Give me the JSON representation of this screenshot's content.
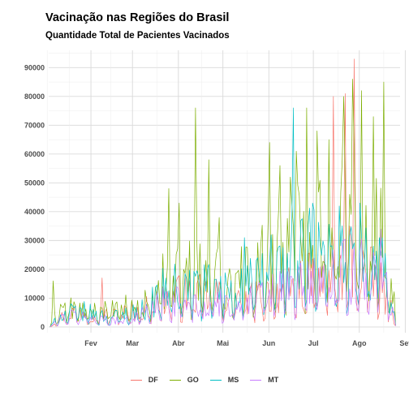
{
  "title": "Vacinação nas Regiões do Brasil",
  "subtitle": "Quantidade Total de Pacientes Vacinados",
  "chart_data": {
    "type": "line",
    "title": "Vacinação nas Regiões do Brasil",
    "subtitle": "Quantidade Total de Pacientes Vacinados",
    "xlabel": "",
    "ylabel": "",
    "x_ticks": [
      "Fev",
      "Mar",
      "Abr",
      "Mai",
      "Jun",
      "Jul",
      "Ago",
      "Set"
    ],
    "y_ticks": [
      0,
      10000,
      20000,
      30000,
      40000,
      50000,
      60000,
      70000,
      80000,
      90000
    ],
    "xlim": [
      "2021-01-18",
      "2021-09-12"
    ],
    "ylim": [
      -2000,
      96000
    ],
    "grid": true,
    "legend": "bottom",
    "colors": {
      "DF": "#F8766D",
      "GO": "#7CAE00",
      "MS": "#00BFC4",
      "MT": "#C77CFF"
    },
    "series": [
      {
        "name": "DF",
        "color": "#F8766D",
        "anchors": [
          [
            "2021-01-19",
            0
          ],
          [
            "2021-01-25",
            3000
          ],
          [
            "2021-02-01",
            5000
          ],
          [
            "2021-02-08",
            6000
          ],
          [
            "2021-02-15",
            5000
          ],
          [
            "2021-02-22",
            4500
          ],
          [
            "2021-03-01",
            4000
          ],
          [
            "2021-03-08",
            5000
          ],
          [
            "2021-03-15",
            5500
          ],
          [
            "2021-03-22",
            6000
          ],
          [
            "2021-03-29",
            8000
          ],
          [
            "2021-04-05",
            10000
          ],
          [
            "2021-04-12",
            11000
          ],
          [
            "2021-04-19",
            12000
          ],
          [
            "2021-04-26",
            12000
          ],
          [
            "2021-05-03",
            11000
          ],
          [
            "2021-05-10",
            11000
          ],
          [
            "2021-05-17",
            10500
          ],
          [
            "2021-05-24",
            10500
          ],
          [
            "2021-05-31",
            10000
          ],
          [
            "2021-06-07",
            10500
          ],
          [
            "2021-06-14",
            12000
          ],
          [
            "2021-06-21",
            12500
          ],
          [
            "2021-06-28",
            13000
          ],
          [
            "2021-07-05",
            15000
          ],
          [
            "2021-07-12",
            16000
          ],
          [
            "2021-07-19",
            17000
          ],
          [
            "2021-07-26",
            17000
          ],
          [
            "2021-08-02",
            19000
          ],
          [
            "2021-08-09",
            24000
          ],
          [
            "2021-08-16",
            22000
          ],
          [
            "2021-08-23",
            18000
          ],
          [
            "2021-08-30",
            14000
          ],
          [
            "2021-09-06",
            7000
          ],
          [
            "2021-09-09",
            500
          ]
        ],
        "peaks": [
          [
            "2021-02-23",
            17000
          ],
          [
            "2021-07-29",
            80000
          ],
          [
            "2021-08-06",
            81000
          ],
          [
            "2021-08-12",
            93000
          ]
        ]
      },
      {
        "name": "GO",
        "color": "#7CAE00",
        "anchors": [
          [
            "2021-01-19",
            0
          ],
          [
            "2021-01-25",
            7000
          ],
          [
            "2021-02-01",
            7000
          ],
          [
            "2021-02-08",
            6000
          ],
          [
            "2021-02-15",
            5500
          ],
          [
            "2021-02-22",
            6000
          ],
          [
            "2021-03-01",
            6000
          ],
          [
            "2021-03-08",
            7000
          ],
          [
            "2021-03-15",
            7000
          ],
          [
            "2021-03-22",
            8000
          ],
          [
            "2021-03-29",
            11000
          ],
          [
            "2021-04-05",
            16000
          ],
          [
            "2021-04-12",
            18000
          ],
          [
            "2021-04-19",
            19000
          ],
          [
            "2021-04-26",
            20000
          ],
          [
            "2021-05-03",
            19000
          ],
          [
            "2021-05-10",
            18000
          ],
          [
            "2021-05-17",
            17000
          ],
          [
            "2021-05-24",
            19000
          ],
          [
            "2021-05-31",
            19000
          ],
          [
            "2021-06-07",
            21000
          ],
          [
            "2021-06-14",
            25000
          ],
          [
            "2021-06-21",
            28000
          ],
          [
            "2021-06-28",
            30000
          ],
          [
            "2021-07-05",
            33000
          ],
          [
            "2021-07-12",
            35000
          ],
          [
            "2021-07-19",
            38000
          ],
          [
            "2021-07-26",
            40000
          ],
          [
            "2021-08-02",
            42000
          ],
          [
            "2021-08-09",
            40000
          ],
          [
            "2021-08-16",
            42000
          ],
          [
            "2021-08-23",
            38000
          ],
          [
            "2021-08-30",
            34000
          ],
          [
            "2021-09-06",
            22000
          ],
          [
            "2021-09-09",
            1000
          ]
        ],
        "peaks": [
          [
            "2021-01-21",
            16000
          ],
          [
            "2021-04-09",
            48000
          ],
          [
            "2021-04-16",
            43000
          ],
          [
            "2021-04-27",
            76000
          ],
          [
            "2021-05-06",
            58000
          ],
          [
            "2021-05-13",
            38000
          ],
          [
            "2021-06-16",
            64000
          ],
          [
            "2021-06-23",
            56000
          ],
          [
            "2021-06-30",
            52000
          ],
          [
            "2021-07-04",
            61000
          ],
          [
            "2021-07-11",
            76000
          ],
          [
            "2021-07-18",
            68000
          ],
          [
            "2021-07-26",
            65000
          ],
          [
            "2021-08-05",
            80000
          ],
          [
            "2021-08-11",
            86000
          ],
          [
            "2021-08-17",
            82000
          ],
          [
            "2021-08-25",
            73000
          ],
          [
            "2021-09-01",
            85000
          ]
        ]
      },
      {
        "name": "MS",
        "color": "#00BFC4",
        "anchors": [
          [
            "2021-01-19",
            0
          ],
          [
            "2021-01-25",
            4000
          ],
          [
            "2021-02-01",
            5000
          ],
          [
            "2021-02-08",
            6000
          ],
          [
            "2021-02-15",
            5000
          ],
          [
            "2021-02-22",
            4000
          ],
          [
            "2021-03-01",
            3500
          ],
          [
            "2021-03-08",
            4500
          ],
          [
            "2021-03-15",
            5000
          ],
          [
            "2021-03-22",
            6000
          ],
          [
            "2021-03-29",
            9000
          ],
          [
            "2021-04-05",
            13000
          ],
          [
            "2021-04-12",
            14000
          ],
          [
            "2021-04-19",
            15000
          ],
          [
            "2021-04-26",
            15000
          ],
          [
            "2021-05-03",
            14000
          ],
          [
            "2021-05-10",
            14000
          ],
          [
            "2021-05-17",
            13000
          ],
          [
            "2021-05-24",
            14000
          ],
          [
            "2021-05-31",
            15000
          ],
          [
            "2021-06-07",
            16000
          ],
          [
            "2021-06-14",
            19000
          ],
          [
            "2021-06-21",
            21000
          ],
          [
            "2021-06-28",
            22000
          ],
          [
            "2021-07-05",
            24000
          ],
          [
            "2021-07-12",
            27000
          ],
          [
            "2021-07-19",
            28000
          ],
          [
            "2021-07-26",
            27000
          ],
          [
            "2021-08-02",
            26000
          ],
          [
            "2021-08-09",
            24000
          ],
          [
            "2021-08-16",
            24000
          ],
          [
            "2021-08-23",
            23000
          ],
          [
            "2021-08-30",
            22000
          ],
          [
            "2021-09-06",
            15000
          ],
          [
            "2021-09-09",
            1000
          ]
        ],
        "peaks": [
          [
            "2021-05-30",
            31000
          ],
          [
            "2021-06-17",
            32000
          ],
          [
            "2021-07-02",
            76000
          ],
          [
            "2021-07-15",
            43000
          ],
          [
            "2021-08-02",
            42000
          ],
          [
            "2021-08-16",
            43000
          ],
          [
            "2021-08-29",
            31000
          ]
        ]
      },
      {
        "name": "MT",
        "color": "#C77CFF",
        "anchors": [
          [
            "2021-01-19",
            0
          ],
          [
            "2021-01-25",
            3000
          ],
          [
            "2021-02-01",
            4000
          ],
          [
            "2021-02-08",
            4000
          ],
          [
            "2021-02-15",
            3500
          ],
          [
            "2021-02-22",
            3000
          ],
          [
            "2021-03-01",
            2500
          ],
          [
            "2021-03-08",
            3000
          ],
          [
            "2021-03-15",
            3500
          ],
          [
            "2021-03-22",
            4500
          ],
          [
            "2021-03-29",
            6500
          ],
          [
            "2021-04-05",
            9000
          ],
          [
            "2021-04-12",
            10000
          ],
          [
            "2021-04-19",
            10000
          ],
          [
            "2021-04-26",
            10000
          ],
          [
            "2021-05-03",
            9000
          ],
          [
            "2021-05-10",
            9000
          ],
          [
            "2021-05-17",
            8500
          ],
          [
            "2021-05-24",
            9000
          ],
          [
            "2021-05-31",
            9500
          ],
          [
            "2021-06-07",
            10000
          ],
          [
            "2021-06-14",
            12000
          ],
          [
            "2021-06-21",
            13000
          ],
          [
            "2021-06-28",
            13500
          ],
          [
            "2021-07-05",
            14500
          ],
          [
            "2021-07-12",
            16000
          ],
          [
            "2021-07-19",
            17000
          ],
          [
            "2021-07-26",
            17000
          ],
          [
            "2021-08-02",
            18000
          ],
          [
            "2021-08-09",
            20000
          ],
          [
            "2021-08-16",
            21000
          ],
          [
            "2021-08-23",
            20000
          ],
          [
            "2021-08-30",
            18000
          ],
          [
            "2021-09-06",
            10000
          ],
          [
            "2021-09-09",
            500
          ]
        ],
        "peaks": [
          [
            "2021-08-30",
            34000
          ]
        ]
      }
    ]
  }
}
